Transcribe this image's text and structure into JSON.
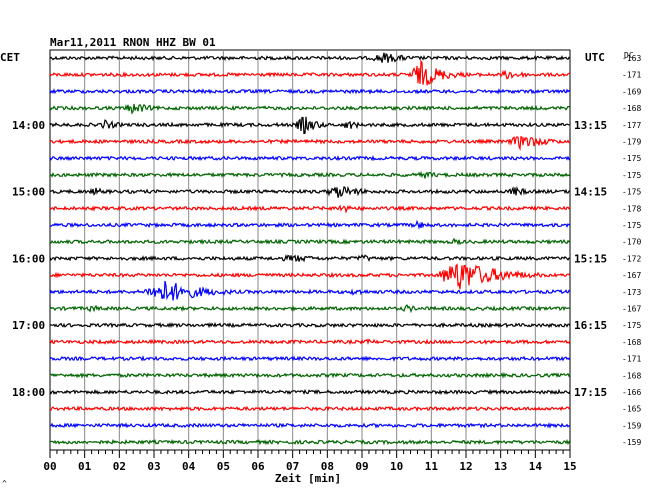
{
  "chart_data": {
    "type": "line",
    "title": "Mar11,2011   RNON HHZ BW 01",
    "xlabel": "Zeit [min]",
    "x_ticks": [
      "00",
      "01",
      "02",
      "03",
      "04",
      "05",
      "06",
      "07",
      "08",
      "09",
      "10",
      "11",
      "12",
      "13",
      "14",
      "15"
    ],
    "xlim": [
      0,
      15
    ],
    "left_axis_label": "CET",
    "right_axis_label": "UTC",
    "dc_label": "DC",
    "left_time_labels": [
      {
        "row": 4,
        "label": "14:00"
      },
      {
        "row": 8,
        "label": "15:00"
      },
      {
        "row": 12,
        "label": "16:00"
      },
      {
        "row": 16,
        "label": "17:00"
      },
      {
        "row": 20,
        "label": "18:00"
      }
    ],
    "right_time_labels": [
      {
        "row": 4,
        "label": "13:15"
      },
      {
        "row": 8,
        "label": "14:15"
      },
      {
        "row": 12,
        "label": "15:15"
      },
      {
        "row": 16,
        "label": "16:15"
      },
      {
        "row": 20,
        "label": "17:15"
      }
    ],
    "colors": [
      "#000000",
      "#ff0000",
      "#0000ff",
      "#006400"
    ],
    "dc_values": [
      -163,
      -171,
      -169,
      -168,
      -177,
      -179,
      -175,
      -175,
      -175,
      -178,
      -175,
      -170,
      -172,
      -167,
      -173,
      -167,
      -175,
      -168,
      -171,
      -168,
      -166,
      -165,
      -159,
      -159
    ],
    "events": [
      {
        "row": 0,
        "center_min": 9.6,
        "amplitude": 6,
        "duration_min": 1.5
      },
      {
        "row": 1,
        "center_min": 10.7,
        "amplitude": 14,
        "duration_min": 1.4
      },
      {
        "row": 1,
        "center_min": 13.2,
        "amplitude": 5,
        "duration_min": 1.2
      },
      {
        "row": 3,
        "center_min": 2.4,
        "amplitude": 6,
        "duration_min": 1.2
      },
      {
        "row": 4,
        "center_min": 1.6,
        "amplitude": 5,
        "duration_min": 1.0
      },
      {
        "row": 4,
        "center_min": 7.3,
        "amplitude": 10,
        "duration_min": 0.9
      },
      {
        "row": 4,
        "center_min": 8.6,
        "amplitude": 5,
        "duration_min": 0.8
      },
      {
        "row": 5,
        "center_min": 13.6,
        "amplitude": 8,
        "duration_min": 1.6
      },
      {
        "row": 7,
        "center_min": 10.8,
        "amplitude": 4,
        "duration_min": 1.0
      },
      {
        "row": 8,
        "center_min": 1.3,
        "amplitude": 4,
        "duration_min": 0.8
      },
      {
        "row": 8,
        "center_min": 8.3,
        "amplitude": 7,
        "duration_min": 1.5
      },
      {
        "row": 8,
        "center_min": 13.4,
        "amplitude": 5,
        "duration_min": 0.9
      },
      {
        "row": 9,
        "center_min": 8.4,
        "amplitude": 5,
        "duration_min": 0.8
      },
      {
        "row": 10,
        "center_min": 10.6,
        "amplitude": 4,
        "duration_min": 1.0
      },
      {
        "row": 11,
        "center_min": 11.7,
        "amplitude": 5,
        "duration_min": 0.4
      },
      {
        "row": 12,
        "center_min": 7.0,
        "amplitude": 4,
        "duration_min": 2.0
      },
      {
        "row": 12,
        "center_min": 9.0,
        "amplitude": 4,
        "duration_min": 1.0
      },
      {
        "row": 13,
        "center_min": 6.0,
        "amplitude": 3,
        "duration_min": 0.8
      },
      {
        "row": 13,
        "center_min": 11.8,
        "amplitude": 16,
        "duration_min": 2.5
      },
      {
        "row": 14,
        "center_min": 3.3,
        "amplitude": 12,
        "duration_min": 2.4
      },
      {
        "row": 14,
        "center_min": 8.8,
        "amplitude": 4,
        "duration_min": 0.8
      },
      {
        "row": 15,
        "center_min": 1.2,
        "amplitude": 4,
        "duration_min": 0.6
      },
      {
        "row": 15,
        "center_min": 10.3,
        "amplitude": 4,
        "duration_min": 0.8
      },
      {
        "row": 17,
        "center_min": 9.2,
        "amplitude": 3,
        "duration_min": 0.8
      }
    ]
  }
}
